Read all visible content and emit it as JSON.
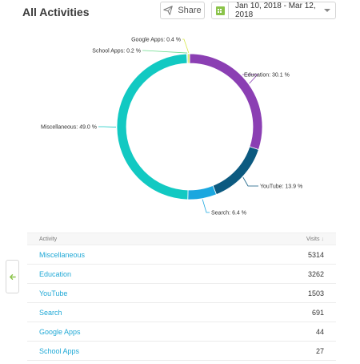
{
  "header": {
    "title": "All Activities",
    "share_label": "Share",
    "date_range": "Jan 10, 2018 - Mar 12, 2018"
  },
  "chart_data": {
    "type": "pie",
    "variant": "donut",
    "slices": [
      {
        "label": "Education",
        "value": 30.1,
        "color": "#8b3fb3",
        "display": "Education: 30.1 %"
      },
      {
        "label": "YouTube",
        "value": 13.9,
        "color": "#0c5a80",
        "display": "YouTube: 13.9 %"
      },
      {
        "label": "Search",
        "value": 6.4,
        "color": "#1ba7df",
        "display": "Search: 6.4 %"
      },
      {
        "label": "Miscellaneous",
        "value": 49.0,
        "color": "#12c9c2",
        "display": "Miscellaneous: 49.0 %"
      },
      {
        "label": "School Apps",
        "value": 0.2,
        "color": "#6ddc8e",
        "display": "School Apps: 0.2 %"
      },
      {
        "label": "Google Apps",
        "value": 0.4,
        "color": "#d6e84a",
        "display": "Google Apps: 0.4 %"
      }
    ]
  },
  "table": {
    "col_activity": "Activity",
    "col_visits": "Visits",
    "rows": [
      {
        "name": "Miscellaneous",
        "visits": "5314"
      },
      {
        "name": "Education",
        "visits": "3262"
      },
      {
        "name": "YouTube",
        "visits": "1503"
      },
      {
        "name": "Search",
        "visits": "691"
      },
      {
        "name": "Google Apps",
        "visits": "44"
      },
      {
        "name": "School Apps",
        "visits": "27"
      }
    ]
  }
}
